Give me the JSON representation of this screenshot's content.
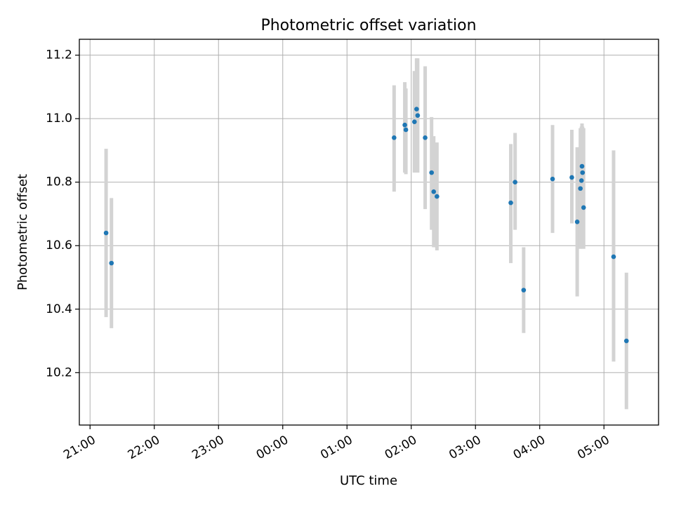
{
  "chart_data": {
    "type": "scatter",
    "title": "Photometric offset variation",
    "xlabel": "UTC time",
    "ylabel": "Photometric offset",
    "grid": true,
    "colors": {
      "marker": "#1f77b4",
      "errorbar": "#d3d3d3",
      "grid": "#b0b0b0"
    },
    "x_axis": {
      "unit": "UTC",
      "start": "2024-01-01T20:50:00Z",
      "end": "2024-01-02T05:51:00Z",
      "ticks": [
        {
          "value": "2024-01-01T21:00:00Z",
          "label": "21:00"
        },
        {
          "value": "2024-01-01T22:00:00Z",
          "label": "22:00"
        },
        {
          "value": "2024-01-01T23:00:00Z",
          "label": "23:00"
        },
        {
          "value": "2024-01-02T00:00:00Z",
          "label": "00:00"
        },
        {
          "value": "2024-01-02T01:00:00Z",
          "label": "01:00"
        },
        {
          "value": "2024-01-02T02:00:00Z",
          "label": "02:00"
        },
        {
          "value": "2024-01-02T03:00:00Z",
          "label": "03:00"
        },
        {
          "value": "2024-01-02T04:00:00Z",
          "label": "04:00"
        },
        {
          "value": "2024-01-02T05:00:00Z",
          "label": "05:00"
        }
      ]
    },
    "y_axis": {
      "ylim": [
        10.035,
        11.25
      ],
      "ticks": [
        {
          "value": 10.2,
          "label": "10.2"
        },
        {
          "value": 10.4,
          "label": "10.4"
        },
        {
          "value": 10.6,
          "label": "10.6"
        },
        {
          "value": 10.8,
          "label": "10.8"
        },
        {
          "value": 11.0,
          "label": "11.0"
        },
        {
          "value": 11.2,
          "label": "11.2"
        }
      ]
    },
    "points": [
      {
        "x": "2024-01-01T21:15:00Z",
        "y": 10.64,
        "ylow": 10.375,
        "yhigh": 10.905
      },
      {
        "x": "2024-01-01T21:20:00Z",
        "y": 10.545,
        "ylow": 10.34,
        "yhigh": 10.75
      },
      {
        "x": "2024-01-02T01:44:00Z",
        "y": 10.94,
        "ylow": 10.77,
        "yhigh": 11.105
      },
      {
        "x": "2024-01-02T01:54:00Z",
        "y": 10.98,
        "ylow": 10.83,
        "yhigh": 11.115
      },
      {
        "x": "2024-01-02T01:55:00Z",
        "y": 10.965,
        "ylow": 10.825,
        "yhigh": 11.095
      },
      {
        "x": "2024-01-02T02:03:00Z",
        "y": 10.99,
        "ylow": 10.83,
        "yhigh": 11.15
      },
      {
        "x": "2024-01-02T02:05:00Z",
        "y": 11.03,
        "ylow": 10.87,
        "yhigh": 11.19
      },
      {
        "x": "2024-01-02T02:06:00Z",
        "y": 11.01,
        "ylow": 10.83,
        "yhigh": 11.19
      },
      {
        "x": "2024-01-02T02:13:00Z",
        "y": 10.94,
        "ylow": 10.715,
        "yhigh": 11.165
      },
      {
        "x": "2024-01-02T02:19:00Z",
        "y": 10.83,
        "ylow": 10.65,
        "yhigh": 11.005
      },
      {
        "x": "2024-01-02T02:21:00Z",
        "y": 10.77,
        "ylow": 10.595,
        "yhigh": 10.945
      },
      {
        "x": "2024-01-02T02:24:00Z",
        "y": 10.755,
        "ylow": 10.585,
        "yhigh": 10.925
      },
      {
        "x": "2024-01-02T03:33:00Z",
        "y": 10.735,
        "ylow": 10.545,
        "yhigh": 10.92
      },
      {
        "x": "2024-01-02T03:37:00Z",
        "y": 10.8,
        "ylow": 10.65,
        "yhigh": 10.955
      },
      {
        "x": "2024-01-02T03:45:00Z",
        "y": 10.46,
        "ylow": 10.325,
        "yhigh": 10.595
      },
      {
        "x": "2024-01-02T04:12:00Z",
        "y": 10.81,
        "ylow": 10.64,
        "yhigh": 10.98
      },
      {
        "x": "2024-01-02T04:30:00Z",
        "y": 10.815,
        "ylow": 10.67,
        "yhigh": 10.965
      },
      {
        "x": "2024-01-02T04:35:00Z",
        "y": 10.675,
        "ylow": 10.44,
        "yhigh": 10.91
      },
      {
        "x": "2024-01-02T04:38:00Z",
        "y": 10.78,
        "ylow": 10.59,
        "yhigh": 10.97
      },
      {
        "x": "2024-01-02T04:39:00Z",
        "y": 10.805,
        "ylow": 10.635,
        "yhigh": 10.975
      },
      {
        "x": "2024-01-02T04:39:30Z",
        "y": 10.85,
        "ylow": 10.715,
        "yhigh": 10.985
      },
      {
        "x": "2024-01-02T04:40:00Z",
        "y": 10.83,
        "ylow": 10.69,
        "yhigh": 10.975
      },
      {
        "x": "2024-01-02T04:41:00Z",
        "y": 10.72,
        "ylow": 10.59,
        "yhigh": 10.97
      },
      {
        "x": "2024-01-02T05:09:00Z",
        "y": 10.565,
        "ylow": 10.235,
        "yhigh": 10.9
      },
      {
        "x": "2024-01-02T05:21:00Z",
        "y": 10.3,
        "ylow": 10.085,
        "yhigh": 10.515
      }
    ]
  }
}
